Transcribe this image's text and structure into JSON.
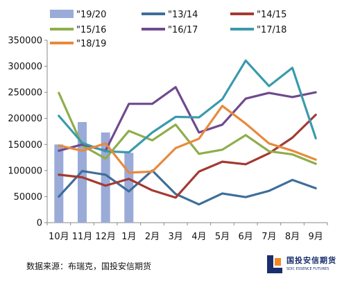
{
  "chart_data": {
    "type": "line",
    "title": "",
    "xlabel": "",
    "ylabel": "",
    "categories": [
      "10月",
      "11月",
      "12月",
      "1月",
      "2月",
      "3月",
      "4月",
      "5月",
      "6月",
      "7月",
      "8月",
      "9月"
    ],
    "ylim": [
      0,
      350000
    ],
    "yticks": [
      "0",
      "50000",
      "100000",
      "150000",
      "200000",
      "250000",
      "300000",
      "350000"
    ],
    "grid": false,
    "legend_position": "top",
    "bars": {
      "name": "\"19/20",
      "color": "#9aabd8",
      "values": [
        150000,
        193000,
        173000,
        134000
      ]
    },
    "series": [
      {
        "name": "\"13/14",
        "color": "#3e6e9a",
        "values": [
          50000,
          99000,
          92000,
          60000,
          100000,
          55000,
          35000,
          56000,
          49000,
          61000,
          82000,
          66000
        ]
      },
      {
        "name": "\"14/15",
        "color": "#a33a33",
        "values": [
          92000,
          87000,
          71000,
          84000,
          62000,
          48000,
          98000,
          117000,
          112000,
          133000,
          163000,
          207000
        ]
      },
      {
        "name": "\"15/16",
        "color": "#8fad4a",
        "values": [
          249000,
          148000,
          123000,
          176000,
          158000,
          188000,
          132000,
          140000,
          168000,
          137000,
          131000,
          113000
        ]
      },
      {
        "name": "\"16/17",
        "color": "#6f4a8e",
        "values": [
          138000,
          150000,
          138000,
          228000,
          228000,
          260000,
          173000,
          188000,
          238000,
          249000,
          241000,
          250000
        ]
      },
      {
        "name": "\"17/18",
        "color": "#3a9aac",
        "values": [
          205000,
          153000,
          137000,
          135000,
          173000,
          203000,
          202000,
          237000,
          311000,
          262000,
          297000,
          162000
        ]
      },
      {
        "name": "\"18/19",
        "color": "#e88a3c",
        "values": [
          148000,
          138000,
          152000,
          96000,
          98000,
          143000,
          161000,
          224000,
          190000,
          152000,
          138000,
          121000
        ]
      }
    ]
  },
  "source_text": "数据来源：布瑞克，国投安信期货",
  "logo": {
    "name_cn": "国投安信期货",
    "name_en": "SDIC ESSENCE FUTURES",
    "colors": {
      "blue": "#1a2e6e",
      "orange": "#f08a24"
    }
  }
}
